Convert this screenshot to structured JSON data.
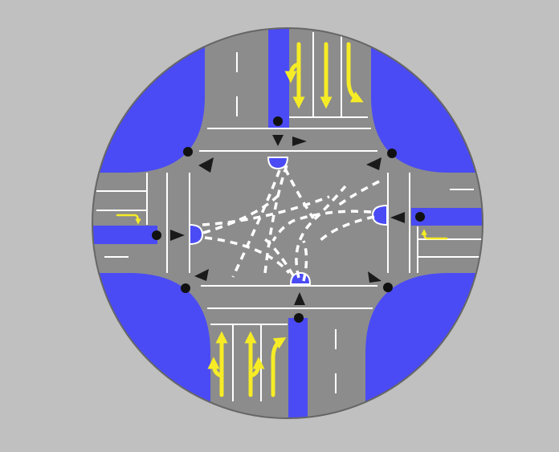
{
  "colors": {
    "background": "#c0c0c0",
    "asphalt": "#8c8c8c",
    "asphalt_dark": "#858585",
    "blue_zone": "#4a4bf4",
    "lane_line": "#ffffff",
    "arrow_yellow": "#f6ec25",
    "signal_dot": "#111111",
    "direction_marker": "#1a1a1a",
    "rim": "#666666"
  },
  "diagram": {
    "type": "signalized four-way intersection",
    "approaches": [
      {
        "side": "north",
        "lane_arrows": [
          "left-straight",
          "straight",
          "straight-right"
        ]
      },
      {
        "side": "south",
        "lane_arrows": [
          "straight-left",
          "straight-left",
          "straight-right"
        ]
      },
      {
        "side": "west",
        "lane_arrows": [
          "right-turn"
        ]
      },
      {
        "side": "east",
        "lane_arrows": [
          "left-turn"
        ]
      }
    ],
    "icons": [
      "corner-island-icon",
      "lane-arrow-icon",
      "signal-dot-icon",
      "direction-triangle-icon",
      "pedestrian-refuge-icon",
      "turn-guide-dashed-path"
    ]
  }
}
